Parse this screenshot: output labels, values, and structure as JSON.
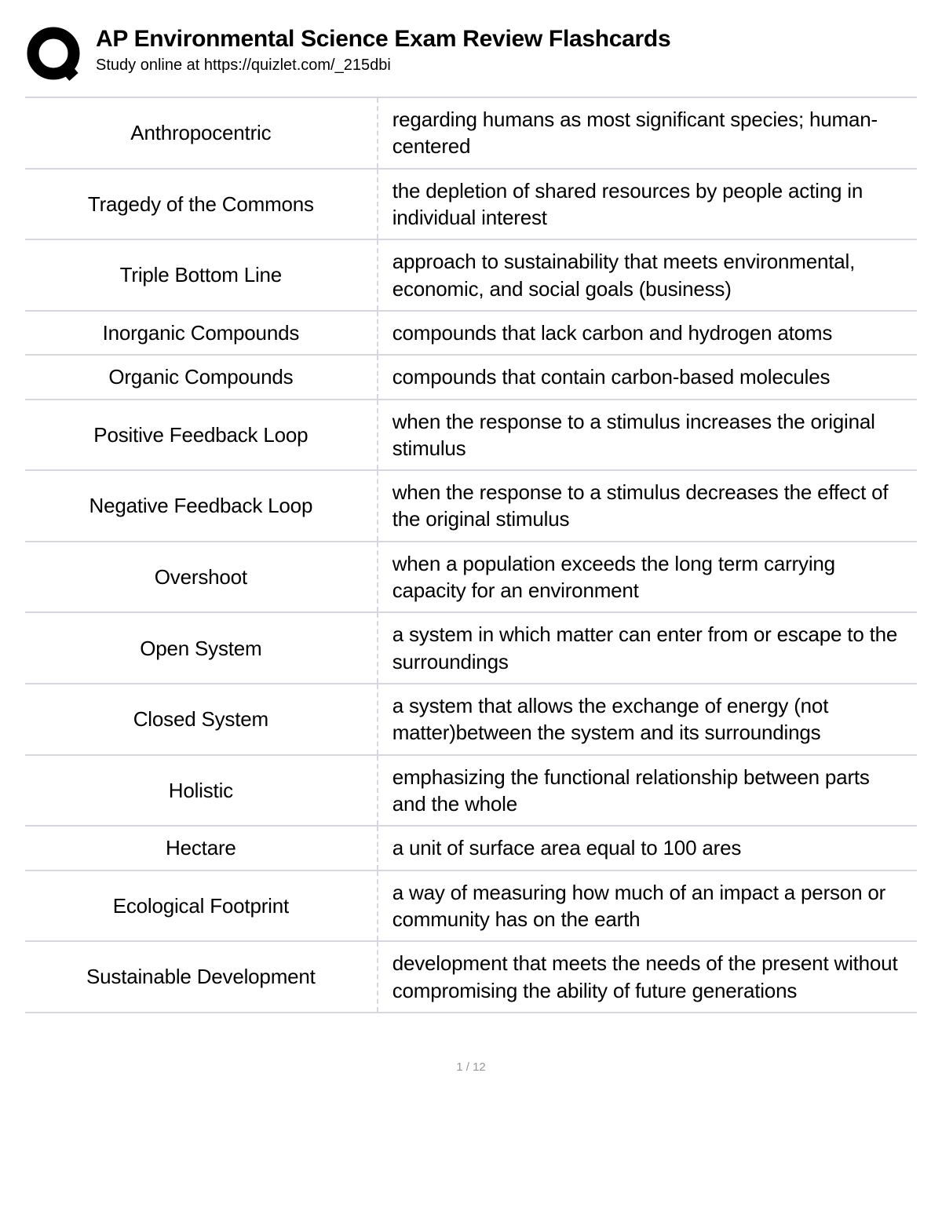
{
  "header": {
    "title": "AP Environmental Science Exam Review Flashcards",
    "subtitle": "Study online at https://quizlet.com/_215dbi"
  },
  "logo": {
    "stroke_color": "#000000",
    "stroke_width": 14,
    "size": 72
  },
  "table": {
    "border_color": "#d4d6e0",
    "rows": [
      {
        "term": "Anthropocentric",
        "definition": "regarding humans as most significant species; human-centered"
      },
      {
        "term": "Tragedy of the Commons",
        "definition": "the depletion of shared resources by people acting in individual interest"
      },
      {
        "term": "Triple Bottom Line",
        "definition": "approach to sustainability that meets environmental, economic, and social goals (business)"
      },
      {
        "term": "Inorganic Compounds",
        "definition": "compounds that lack carbon and hydrogen atoms"
      },
      {
        "term": "Organic Compounds",
        "definition": "compounds that contain carbon-based molecules"
      },
      {
        "term": "Positive Feedback Loop",
        "definition": "when the response to a stimulus increases the original stimulus"
      },
      {
        "term": "Negative Feedback Loop",
        "definition": "when the response to a stimulus decreases the effect of the original stimulus"
      },
      {
        "term": "Overshoot",
        "definition": "when a population exceeds the long term carrying capacity for an environment"
      },
      {
        "term": "Open System",
        "definition": "a system in which matter can enter from or escape to the surroundings"
      },
      {
        "term": "Closed System",
        "definition": "a system that allows the exchange of energy (not matter)between the system and its surroundings"
      },
      {
        "term": "Holistic",
        "definition": "emphasizing the functional relationship between parts and the whole"
      },
      {
        "term": "Hectare",
        "definition": "a unit of surface area equal to 100 ares"
      },
      {
        "term": "Ecological Footprint",
        "definition": "a way of measuring how much of an impact a person or community has on the earth"
      },
      {
        "term": "Sustainable Development",
        "definition": "development that meets the needs of the present without compromising the ability of future generations"
      }
    ]
  },
  "footer": {
    "page_indicator": "1 / 12"
  }
}
